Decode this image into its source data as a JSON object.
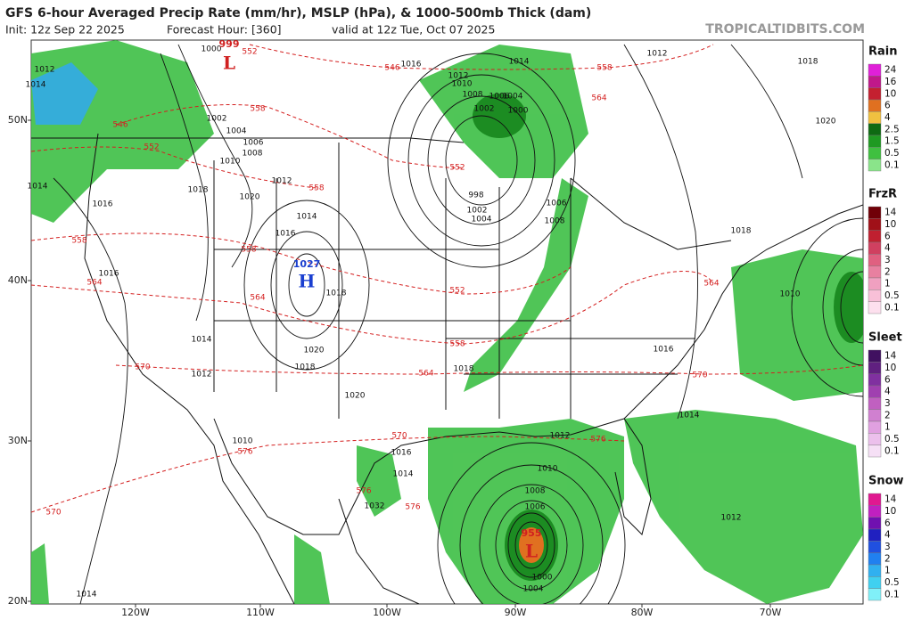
{
  "header": {
    "title": "GFS 6-hour Averaged Precip Rate (mm/hr), MSLP (hPa), & 1000-500mb Thick (dam)",
    "init": "Init: 12z Sep 22 2025",
    "forecast_hour": "Forecast Hour: [360]",
    "valid": "valid at 12z Tue, Oct 07 2025",
    "source": "TROPICALTIDBITS.COM"
  },
  "axes": {
    "latitudes": [
      "50N",
      "40N",
      "30N",
      "20N"
    ],
    "longitudes": [
      "120W",
      "110W",
      "100W",
      "90W",
      "80W",
      "70W"
    ]
  },
  "pressure_centers": [
    {
      "symbol": "L",
      "value": "999",
      "color": "#d02020"
    },
    {
      "symbol": "H",
      "value": "1027",
      "color": "#1a3fd0"
    },
    {
      "symbol": "L",
      "value": "955",
      "color": "#d02020"
    }
  ],
  "isobar_labels": [
    "1012",
    "1014",
    "1000",
    "1002",
    "1004",
    "1006",
    "1008",
    "1010",
    "1012",
    "1014",
    "1016",
    "1018",
    "1020",
    "1014",
    "1016",
    "1016",
    "1018",
    "1014",
    "1020",
    "1012",
    "1018",
    "1020",
    "1018",
    "1016",
    "1014",
    "1012",
    "1010",
    "1008",
    "1006",
    "1004",
    "1002",
    "1000",
    "998",
    "1002",
    "1004",
    "1006",
    "1008",
    "1012",
    "1018",
    "1020",
    "1018",
    "1010",
    "1016",
    "1014",
    "1012",
    "1010",
    "1008",
    "1006",
    "1004",
    "1016",
    "1014",
    "1010",
    "1012",
    "1014",
    "1032",
    "1000"
  ],
  "thickness_labels": [
    "552",
    "546",
    "558",
    "564",
    "546",
    "552",
    "558",
    "558",
    "552",
    "558",
    "558",
    "564",
    "564",
    "552",
    "558",
    "564",
    "570",
    "570",
    "564",
    "570",
    "576",
    "576",
    "576",
    "576",
    "570"
  ],
  "legend": [
    {
      "title": "Rain",
      "levels": [
        "24",
        "16",
        "10",
        "6",
        "4",
        "2.5",
        "1.5",
        "0.5",
        "0.1"
      ],
      "colors": [
        "#e020d8",
        "#c0188a",
        "#c42030",
        "#e07020",
        "#f0c040",
        "#0e6a12",
        "#1f9a22",
        "#3fc040",
        "#8ae48a"
      ]
    },
    {
      "title": "FrzR",
      "levels": [
        "14",
        "10",
        "6",
        "4",
        "3",
        "2",
        "1",
        "0.5",
        "0.1"
      ],
      "colors": [
        "#700008",
        "#a01018",
        "#c02030",
        "#d04060",
        "#e06080",
        "#e880a0",
        "#f0a0c0",
        "#f8c0d8",
        "#fde0ee"
      ]
    },
    {
      "title": "Sleet",
      "levels": [
        "14",
        "10",
        "6",
        "4",
        "3",
        "2",
        "1",
        "0.5",
        "0.1"
      ],
      "colors": [
        "#401060",
        "#602080",
        "#8030a0",
        "#a040b0",
        "#c060c0",
        "#d080d0",
        "#e0a0e0",
        "#ecc0ec",
        "#f6e0f6"
      ]
    },
    {
      "title": "Snow",
      "levels": [
        "14",
        "10",
        "6",
        "4",
        "3",
        "2",
        "1",
        "0.5",
        "0.1"
      ],
      "colors": [
        "#e01890",
        "#c020c0",
        "#7010b0",
        "#2020c0",
        "#2050e0",
        "#2080f0",
        "#30b0f0",
        "#40d0f0",
        "#80f0f8"
      ]
    }
  ]
}
